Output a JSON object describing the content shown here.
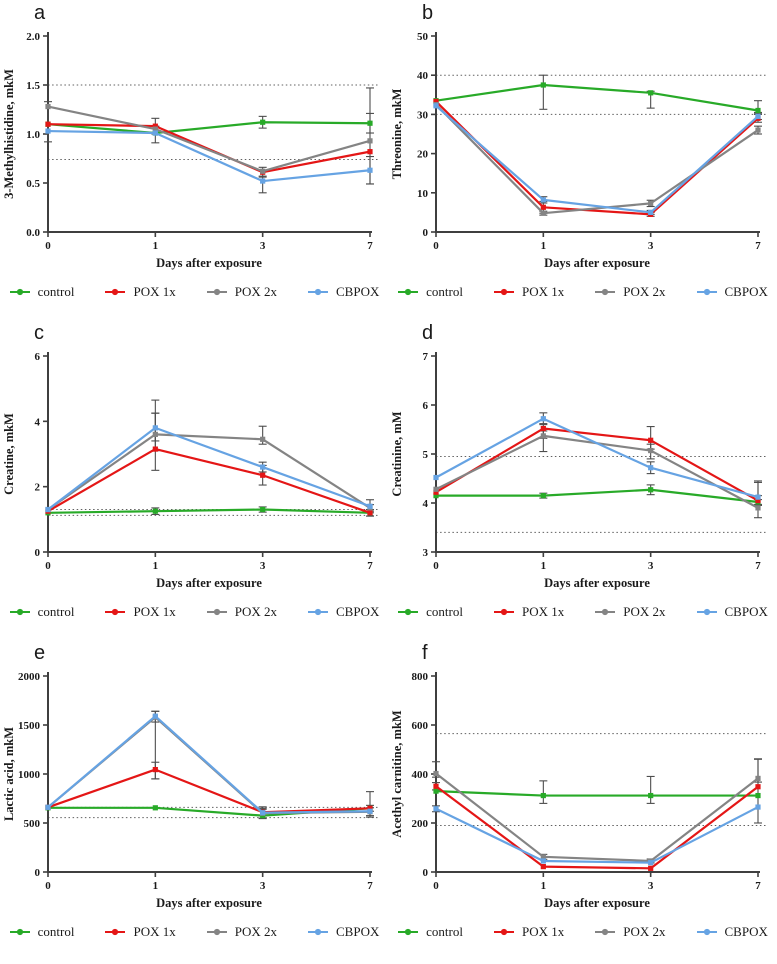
{
  "figure": {
    "xlabel": "Days after exposure",
    "legend": [
      {
        "label": "control",
        "color": "#28aa28"
      },
      {
        "label": "POX 1x",
        "color": "#e41616"
      },
      {
        "label": "POX 2x",
        "color": "#848484"
      },
      {
        "label": "CBPOX",
        "color": "#66a3e3"
      }
    ],
    "colors": {
      "control": "#28aa28",
      "pox1x": "#e41616",
      "pox2x": "#848484",
      "cbpox": "#66a3e3",
      "axis": "#3f3f3f",
      "dotted": "#606060",
      "errorbar": "#4d4d4d"
    }
  },
  "chart_data": [
    {
      "panel": "a",
      "type": "line",
      "ylabel": "3-Methylhistidine, mkM",
      "xlabel": "Days after exposure",
      "ylim": [
        0,
        2
      ],
      "yticks": [
        "0.0",
        "0.5",
        "1.0",
        "1.5",
        "2.0"
      ],
      "dotted_lines": [
        1.5,
        0.74
      ],
      "categories": [
        "0",
        "1",
        "3",
        "7"
      ],
      "series": [
        {
          "name": "control",
          "color": "#28aa28",
          "values": [
            1.1,
            1.01,
            1.12,
            1.11
          ],
          "err": [
            null,
            [
              0.1,
              0.07
            ],
            [
              0.06,
              0.06
            ],
            [
              0.1,
              0.1
            ]
          ]
        },
        {
          "name": "POX 1x",
          "color": "#e41616",
          "values": [
            1.1,
            1.08,
            0.61,
            0.82
          ],
          "err": [
            null,
            [
              0.08,
              0.08
            ],
            [
              0.05,
              0.05
            ],
            null
          ]
        },
        {
          "name": "POX 2x",
          "color": "#848484",
          "values": [
            1.28,
            1.05,
            0.62,
            0.93
          ],
          "err": [
            [
              0.36,
              0.05
            ],
            null,
            null,
            [
              0.44,
              0.54
            ]
          ]
        },
        {
          "name": "CBPOX",
          "color": "#66a3e3",
          "values": [
            1.03,
            1.01,
            0.52,
            0.63
          ],
          "err": [
            null,
            null,
            [
              0.12,
              0.05
            ],
            [
              0.14,
              0.14
            ]
          ]
        }
      ]
    },
    {
      "panel": "b",
      "type": "line",
      "ylabel": "Threonine, mkM",
      "xlabel": "Days after exposure",
      "ylim": [
        0,
        50
      ],
      "yticks": [
        "0",
        "10",
        "20",
        "30",
        "40",
        "50"
      ],
      "dotted_lines": [
        40,
        30
      ],
      "categories": [
        "0",
        "1",
        "3",
        "7"
      ],
      "series": [
        {
          "name": "control",
          "color": "#28aa28",
          "values": [
            33.5,
            37.5,
            35.5,
            31.0
          ],
          "err": [
            null,
            [
              6.2,
              2.5
            ],
            [
              3.9,
              0.4
            ],
            [
              0.5,
              2.5
            ]
          ]
        },
        {
          "name": "POX 1x",
          "color": "#e41616",
          "values": [
            33.3,
            6.3,
            4.5,
            29.0
          ],
          "err": [
            null,
            [
              1.5,
              1.5
            ],
            [
              0.5,
              0.5
            ],
            [
              1.0,
              1.0
            ]
          ]
        },
        {
          "name": "POX 2x",
          "color": "#848484",
          "values": [
            32.5,
            4.8,
            7.3,
            26.0
          ],
          "err": [
            null,
            [
              0.5,
              0.5
            ],
            [
              0.8,
              0.8
            ],
            [
              1.0,
              1.0
            ]
          ]
        },
        {
          "name": "CBPOX",
          "color": "#66a3e3",
          "values": [
            32.2,
            8.2,
            5.0,
            29.5
          ],
          "err": [
            null,
            [
              0.8,
              0.8
            ],
            [
              0.5,
              0.5
            ],
            [
              0.8,
              0.8
            ]
          ]
        }
      ]
    },
    {
      "panel": "c",
      "type": "line",
      "ylabel": "Creatine, mkM",
      "xlabel": "Days after exposure",
      "ylim": [
        0,
        6
      ],
      "yticks": [
        "0",
        "2",
        "4",
        "6"
      ],
      "dotted_lines": [
        1.3,
        1.12
      ],
      "categories": [
        "0",
        "1",
        "3",
        "7"
      ],
      "series": [
        {
          "name": "control",
          "color": "#28aa28",
          "values": [
            1.2,
            1.25,
            1.3,
            1.2
          ],
          "err": [
            null,
            [
              0.1,
              0.1
            ],
            [
              0.08,
              0.08
            ],
            [
              0.1,
              0.1
            ]
          ]
        },
        {
          "name": "POX 1x",
          "color": "#e41616",
          "values": [
            1.25,
            3.15,
            2.35,
            1.2
          ],
          "err": [
            null,
            [
              0.65,
              1.1
            ],
            [
              0.3,
              0.3
            ],
            [
              0.1,
              0.1
            ]
          ]
        },
        {
          "name": "POX 2x",
          "color": "#848484",
          "values": [
            1.3,
            3.6,
            3.45,
            1.35
          ],
          "err": [
            null,
            [
              0.5,
              1.05
            ],
            [
              0.15,
              0.4
            ],
            [
              0.1,
              0.1
            ]
          ]
        },
        {
          "name": "CBPOX",
          "color": "#66a3e3",
          "values": [
            1.3,
            3.8,
            2.6,
            1.4
          ],
          "err": [
            null,
            [
              0.4,
              0.45
            ],
            [
              0.15,
              0.15
            ],
            [
              0.2,
              0.2
            ]
          ]
        }
      ]
    },
    {
      "panel": "d",
      "type": "line",
      "ylabel": "Creatinine, mM",
      "xlabel": "Days after exposure",
      "ylim": [
        3,
        7
      ],
      "yticks": [
        "3",
        "4",
        "5",
        "6",
        "7"
      ],
      "dotted_lines": [
        4.95,
        3.4
      ],
      "categories": [
        "0",
        "1",
        "3",
        "7"
      ],
      "series": [
        {
          "name": "control",
          "color": "#28aa28",
          "values": [
            4.15,
            4.15,
            4.27,
            4.02
          ],
          "err": [
            null,
            [
              0.05,
              0.05
            ],
            [
              0.1,
              0.1
            ],
            [
              0.05,
              0.05
            ]
          ]
        },
        {
          "name": "POX 1x",
          "color": "#e41616",
          "values": [
            4.22,
            5.52,
            5.28,
            4.05
          ],
          "err": [
            null,
            [
              0.2,
              0.1
            ],
            [
              0.18,
              0.28
            ],
            [
              0.1,
              0.1
            ]
          ]
        },
        {
          "name": "POX 2x",
          "color": "#848484",
          "values": [
            4.28,
            5.37,
            5.07,
            3.9
          ],
          "err": [
            null,
            [
              0.32,
              0.1
            ],
            [
              0.17,
              0.13
            ],
            [
              0.2,
              0.55
            ]
          ]
        },
        {
          "name": "CBPOX",
          "color": "#66a3e3",
          "values": [
            4.52,
            5.72,
            4.72,
            4.12
          ],
          "err": [
            null,
            [
              0.12,
              0.12
            ],
            [
              0.12,
              0.12
            ],
            [
              0.15,
              0.3
            ]
          ]
        }
      ]
    },
    {
      "panel": "e",
      "type": "line",
      "ylabel": "Lactic acid, mkM",
      "xlabel": "Days after exposure",
      "ylim": [
        0,
        2000
      ],
      "yticks": [
        "0",
        "500",
        "1000",
        "1500",
        "2000"
      ],
      "dotted_lines": [
        660,
        555
      ],
      "categories": [
        "0",
        "1",
        "3",
        "7"
      ],
      "series": [
        {
          "name": "control",
          "color": "#28aa28",
          "values": [
            655,
            655,
            575,
            650
          ],
          "err": [
            null,
            null,
            null,
            null
          ]
        },
        {
          "name": "POX 1x",
          "color": "#e41616",
          "values": [
            660,
            1045,
            610,
            650
          ],
          "err": [
            null,
            [
              95,
              75
            ],
            [
              30,
              30
            ],
            [
              30,
              30
            ]
          ]
        },
        {
          "name": "POX 2x",
          "color": "#848484",
          "values": [
            660,
            1580,
            600,
            615
          ],
          "err": [
            null,
            [
              630,
              60
            ],
            [
              50,
              50
            ],
            [
              40,
              40
            ]
          ]
        },
        {
          "name": "CBPOX",
          "color": "#66a3e3",
          "values": [
            660,
            1590,
            605,
            620
          ],
          "err": [
            null,
            [
              60,
              50
            ],
            [
              60,
              60
            ],
            [
              60,
              200
            ]
          ]
        }
      ]
    },
    {
      "panel": "f",
      "type": "line",
      "ylabel": "Acethyl carnitine, mkM",
      "xlabel": "Days after exposure",
      "ylim": [
        0,
        800
      ],
      "yticks": [
        "0",
        "200",
        "400",
        "600",
        "800"
      ],
      "dotted_lines": [
        565,
        190
      ],
      "categories": [
        "0",
        "1",
        "3",
        "7"
      ],
      "series": [
        {
          "name": "control",
          "color": "#28aa28",
          "values": [
            330,
            312,
            312,
            312
          ],
          "err": [
            null,
            [
              32,
              60
            ],
            [
              32,
              78
            ],
            null
          ]
        },
        {
          "name": "POX 1x",
          "color": "#e41616",
          "values": [
            350,
            22,
            15,
            348
          ],
          "err": [
            [
              15,
              15
            ],
            null,
            null,
            null
          ]
        },
        {
          "name": "POX 2x",
          "color": "#848484",
          "values": [
            402,
            62,
            45,
            382
          ],
          "err": [
            [
              15,
              48
            ],
            [
              10,
              10
            ],
            [
              8,
              8
            ],
            [
              15,
              80
            ]
          ]
        },
        {
          "name": "CBPOX",
          "color": "#66a3e3",
          "values": [
            258,
            45,
            38,
            265
          ],
          "err": [
            [
              12,
              12
            ],
            null,
            null,
            [
              65,
              195
            ]
          ]
        }
      ]
    }
  ]
}
